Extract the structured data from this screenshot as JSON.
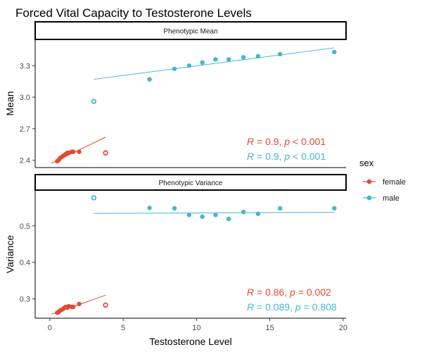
{
  "chart_data": {
    "type": "scatter",
    "title": "Forced Vital Capacity to Testosterone Levels",
    "xlabel": "Testosterone Level",
    "xlim": [
      -1,
      20.2
    ],
    "xticks": [
      0,
      5,
      10,
      15,
      20
    ],
    "legend": {
      "title": "sex",
      "position": "right",
      "entries": [
        {
          "label": "female",
          "color": "#E24A33"
        },
        {
          "label": "male",
          "color": "#46B5CF"
        }
      ]
    },
    "panels": [
      {
        "strip": "Phenotypic Mean",
        "ylabel": "Mean",
        "ylim": [
          2.33,
          3.55
        ],
        "yticks": [
          2.4,
          2.7,
          3.0,
          3.3
        ],
        "series": [
          {
            "name": "female",
            "color": "#E24A33",
            "x": [
              0.5,
              0.6,
              0.7,
              0.8,
              0.9,
              1.0,
              1.1,
              1.2,
              1.3,
              1.5,
              1.6,
              2.0
            ],
            "y": [
              2.39,
              2.4,
              2.42,
              2.43,
              2.44,
              2.45,
              2.46,
              2.47,
              2.47,
              2.48,
              2.48,
              2.48
            ],
            "outlier": {
              "x": 3.8,
              "y": 2.47
            },
            "fit": {
              "x": [
                0.1,
                3.8
              ],
              "y": [
                2.37,
                2.62
              ]
            },
            "stat": {
              "R": "0.9",
              "p": "< 0.001"
            }
          },
          {
            "name": "male",
            "color": "#46B5CF",
            "x": [
              6.8,
              8.5,
              9.5,
              10.4,
              11.3,
              12.2,
              13.2,
              14.2,
              15.7,
              19.4
            ],
            "y": [
              3.17,
              3.27,
              3.3,
              3.33,
              3.36,
              3.36,
              3.38,
              3.39,
              3.41,
              3.43
            ],
            "outlier": {
              "x": 3.0,
              "y": 2.96
            },
            "fit": {
              "x": [
                3.0,
                19.4
              ],
              "y": [
                3.17,
                3.47
              ]
            },
            "stat": {
              "R": "0.9",
              "p": "< 0.001"
            }
          }
        ]
      },
      {
        "strip": "Phenotypic Variance",
        "ylabel": "Variance",
        "ylim": [
          0.247,
          0.598
        ],
        "yticks": [
          0.3,
          0.4,
          0.5
        ],
        "series": [
          {
            "name": "female",
            "color": "#E24A33",
            "x": [
              0.5,
              0.6,
              0.7,
              0.8,
              0.9,
              1.0,
              1.1,
              1.2,
              1.3,
              1.5,
              1.6,
              2.0
            ],
            "y": [
              0.262,
              0.264,
              0.268,
              0.27,
              0.272,
              0.276,
              0.278,
              0.276,
              0.28,
              0.278,
              0.278,
              0.286
            ],
            "outlier": {
              "x": 3.8,
              "y": 0.283
            },
            "fit": {
              "x": [
                0.1,
                3.8
              ],
              "y": [
                0.258,
                0.31
              ]
            },
            "stat": {
              "R": "0.86",
              "p": "= 0.002"
            }
          },
          {
            "name": "male",
            "color": "#46B5CF",
            "x": [
              6.8,
              8.5,
              9.5,
              10.4,
              11.3,
              12.2,
              13.2,
              14.2,
              15.7,
              19.4
            ],
            "y": [
              0.549,
              0.548,
              0.53,
              0.525,
              0.53,
              0.519,
              0.538,
              0.533,
              0.548,
              0.548
            ],
            "outlier": {
              "x": 3.0,
              "y": 0.577
            },
            "fit": {
              "x": [
                3.0,
                19.4
              ],
              "y": [
                0.534,
                0.537
              ]
            },
            "stat": {
              "R": "0.089",
              "p": "= 0.808"
            }
          }
        ]
      }
    ]
  }
}
